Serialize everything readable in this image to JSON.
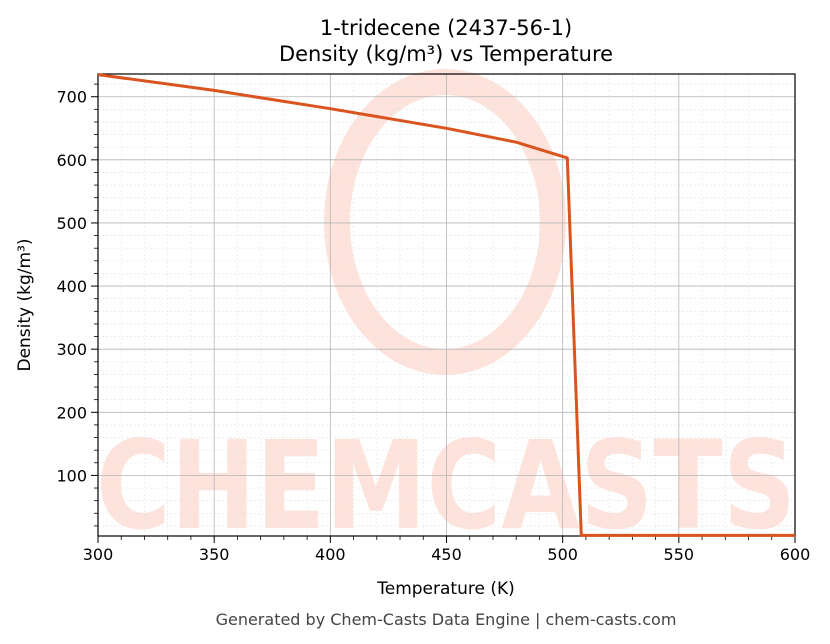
{
  "chart_data": {
    "type": "line",
    "title": "1-tridecene (2437-56-1)",
    "subtitle": "Density (kg/m³) vs Temperature",
    "xlabel": "Temperature (K)",
    "ylabel": "Density (kg/m³)",
    "xlim": [
      300,
      600
    ],
    "ylim": [
      4,
      736
    ],
    "xticks": [
      300,
      350,
      400,
      450,
      500,
      550,
      600
    ],
    "yticks": [
      100,
      200,
      300,
      400,
      500,
      600,
      700
    ],
    "grid": true,
    "series": [
      {
        "color": "#d9541f",
        "x": [
          300,
          350,
          400,
          450,
          480,
          502,
          508,
          600
        ],
        "y": [
          735,
          710,
          681,
          650,
          628,
          603,
          5,
          5
        ]
      }
    ]
  },
  "watermark": {
    "text": "CHEMCASTS",
    "color": "#fde3dc"
  },
  "footer": "Generated by Chem-Casts Data Engine | chem-casts.com"
}
